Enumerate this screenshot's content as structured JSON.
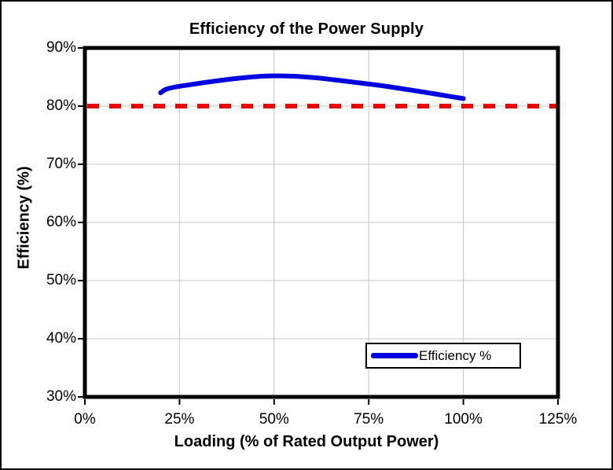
{
  "page": {
    "background": "#ffffff",
    "outer_border_color": "#000000"
  },
  "chart_data": {
    "type": "line",
    "title": "Efficiency of the Power Supply",
    "xlabel": "Loading (% of Rated Output Power)",
    "ylabel": "Efficiency (%)",
    "xlim": [
      0,
      125
    ],
    "ylim": [
      30,
      90
    ],
    "x_tick_values": [
      0,
      25,
      50,
      75,
      100,
      125
    ],
    "x_ticks": [
      "0%",
      "25%",
      "50%",
      "75%",
      "100%",
      "125%"
    ],
    "y_tick_values": [
      90,
      80,
      70,
      60,
      50,
      40,
      30
    ],
    "y_ticks": [
      "90%",
      "80%",
      "70%",
      "60%",
      "50%",
      "40%",
      "30%"
    ],
    "grid": true,
    "grid_color": "#c4c4c4",
    "plot_border_color": "#000000",
    "series": [
      {
        "name": "Efficiency %",
        "color": "#0000e0",
        "line_width": 6,
        "smooth": true,
        "x": [
          20,
          25,
          50,
          75,
          100
        ],
        "y": [
          82.3,
          83.4,
          85.2,
          83.8,
          81.3
        ]
      }
    ],
    "reference_line": {
      "y": 80,
      "color": "#ee0000",
      "style": "dashed",
      "line_width": 6
    },
    "legend": {
      "position": "bottom-right",
      "entries": [
        {
          "label": "Efficiency %",
          "color": "#0000e0"
        }
      ]
    }
  }
}
